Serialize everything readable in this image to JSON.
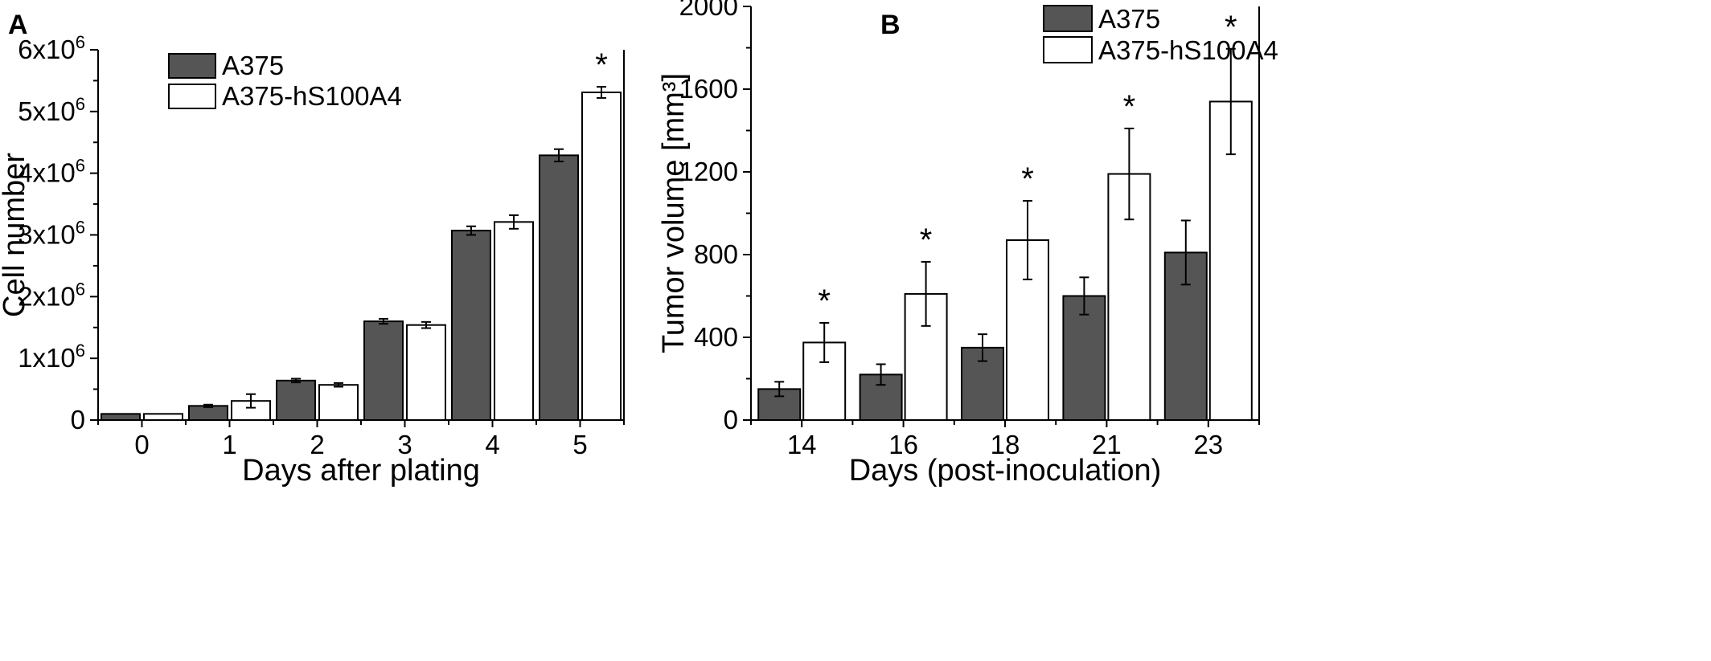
{
  "colors": {
    "control_fill": "#555555",
    "treated_fill": "#ffffff",
    "stroke": "#000000"
  },
  "chart_data": [
    {
      "panel": "A",
      "type": "bar",
      "xlabel": "Days after plating",
      "ylabel": "Cell number",
      "categories": [
        "0",
        "1",
        "2",
        "3",
        "4",
        "5"
      ],
      "ylim": [
        0,
        6000000
      ],
      "yticks": [
        {
          "value": 0,
          "base": "0",
          "exp": ""
        },
        {
          "value": 1000000,
          "base": "1x10",
          "exp": "6"
        },
        {
          "value": 2000000,
          "base": "2x10",
          "exp": "6"
        },
        {
          "value": 3000000,
          "base": "3x10",
          "exp": "6"
        },
        {
          "value": 4000000,
          "base": "4x10",
          "exp": "6"
        },
        {
          "value": 5000000,
          "base": "5x10",
          "exp": "6"
        },
        {
          "value": 6000000,
          "base": "6x10",
          "exp": "6"
        }
      ],
      "legend_position": "top-left",
      "series": [
        {
          "name": "A375",
          "color": "#555555",
          "values": [
            100000,
            230000,
            640000,
            1600000,
            3070000,
            4290000
          ],
          "errors": [
            0,
            20000,
            30000,
            40000,
            70000,
            100000
          ]
        },
        {
          "name": "A375-hS100A4",
          "color": "#ffffff",
          "values": [
            100000,
            310000,
            570000,
            1540000,
            3210000,
            5310000
          ],
          "errors": [
            0,
            110000,
            30000,
            50000,
            110000,
            90000
          ]
        }
      ],
      "significance": [
        {
          "category_index": 5,
          "label": "*"
        }
      ],
      "grid": false
    },
    {
      "panel": "B",
      "type": "bar",
      "xlabel": "Days (post-inoculation)",
      "ylabel": "Tumor volume [mm³]",
      "categories": [
        "14",
        "16",
        "18",
        "21",
        "23"
      ],
      "ylim": [
        0,
        2000
      ],
      "yticks": [
        {
          "value": 0,
          "base": "0",
          "exp": ""
        },
        {
          "value": 400,
          "base": "400",
          "exp": ""
        },
        {
          "value": 800,
          "base": "800",
          "exp": ""
        },
        {
          "value": 1200,
          "base": "1200",
          "exp": ""
        },
        {
          "value": 1600,
          "base": "1600",
          "exp": ""
        },
        {
          "value": 2000,
          "base": "2000",
          "exp": ""
        }
      ],
      "legend_position": "top-left",
      "series": [
        {
          "name": "A375",
          "color": "#555555",
          "values": [
            150,
            220,
            350,
            600,
            810
          ],
          "errors": [
            35,
            50,
            65,
            90,
            155
          ]
        },
        {
          "name": "A375-hS100A4",
          "color": "#ffffff",
          "values": [
            375,
            610,
            870,
            1190,
            1540
          ],
          "errors": [
            95,
            155,
            190,
            220,
            255
          ]
        }
      ],
      "significance": [
        {
          "category_index": 0,
          "label": "*"
        },
        {
          "category_index": 1,
          "label": "*"
        },
        {
          "category_index": 2,
          "label": "*"
        },
        {
          "category_index": 3,
          "label": "*"
        },
        {
          "category_index": 4,
          "label": "*"
        }
      ],
      "grid": false
    }
  ]
}
